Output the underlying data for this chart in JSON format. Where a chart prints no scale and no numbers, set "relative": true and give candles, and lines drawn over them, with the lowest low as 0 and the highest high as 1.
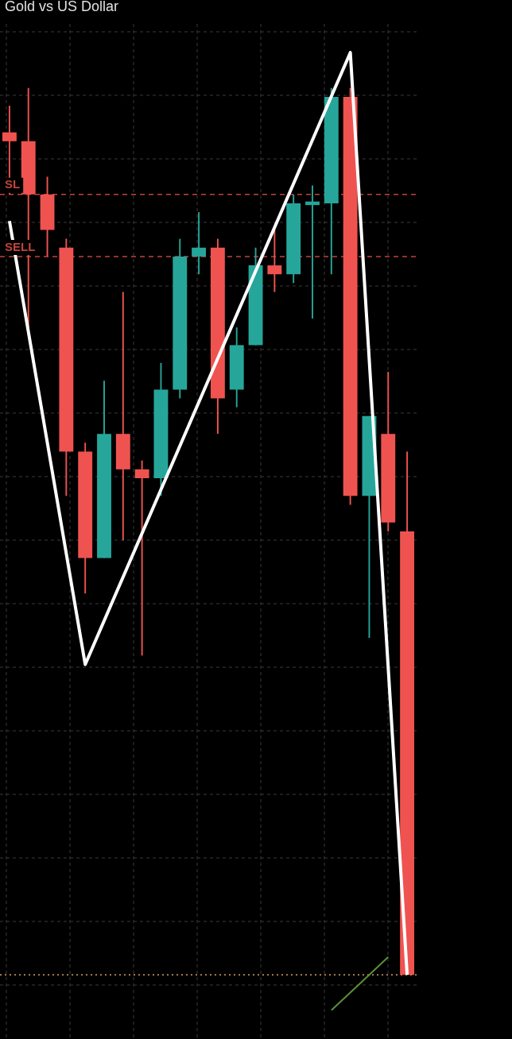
{
  "chart_data": {
    "type": "candlestick",
    "title": "Gold vs US Dollar",
    "relative": true,
    "grid": true,
    "legend": false,
    "categories": [
      null,
      null,
      null,
      null,
      null,
      null,
      null,
      null,
      null,
      null,
      null,
      null,
      null,
      null,
      null,
      null,
      null,
      null,
      null,
      null,
      null,
      null
    ],
    "ohlc": [
      [
        0.95,
        0.98,
        0.88,
        0.94
      ],
      [
        0.94,
        1.0,
        0.73,
        0.88
      ],
      [
        0.88,
        0.9,
        0.81,
        0.84
      ],
      [
        0.82,
        0.83,
        0.54,
        0.59
      ],
      [
        0.59,
        0.6,
        0.43,
        0.47
      ],
      [
        0.47,
        0.67,
        0.47,
        0.61
      ],
      [
        0.61,
        0.77,
        0.49,
        0.57
      ],
      [
        0.57,
        0.58,
        0.36,
        0.56
      ],
      [
        0.56,
        0.69,
        0.54,
        0.66
      ],
      [
        0.66,
        0.83,
        0.65,
        0.81
      ],
      [
        0.81,
        0.86,
        0.79,
        0.82
      ],
      [
        0.82,
        0.83,
        0.61,
        0.65
      ],
      [
        0.66,
        0.73,
        0.64,
        0.71
      ],
      [
        0.71,
        0.82,
        0.71,
        0.8
      ],
      [
        0.8,
        0.84,
        0.77,
        0.79
      ],
      [
        0.79,
        0.88,
        0.78,
        0.87
      ],
      [
        0.87,
        0.89,
        0.74,
        0.87
      ],
      [
        0.87,
        1.0,
        0.79,
        0.99
      ],
      [
        0.99,
        1.0,
        0.53,
        0.54
      ],
      [
        0.54,
        0.63,
        0.38,
        0.63
      ],
      [
        0.61,
        0.68,
        0.5,
        0.51
      ],
      [
        0.5,
        0.59,
        0.0,
        0.0
      ]
    ],
    "series": [
      {
        "type": "line",
        "color": "#ffffff",
        "values": [
          0.85,
          null,
          null,
          null,
          0.35,
          null,
          null,
          null,
          null,
          null,
          null,
          null,
          null,
          null,
          null,
          null,
          null,
          null,
          1.04,
          null,
          null,
          0.0
        ]
      },
      {
        "type": "line",
        "color": "#5a8f3a",
        "values": [
          null,
          null,
          null,
          null,
          null,
          null,
          null,
          null,
          null,
          null,
          null,
          null,
          null,
          null,
          null,
          null,
          null,
          -0.04,
          null,
          0.0,
          0.02,
          null
        ]
      }
    ],
    "ref_lines": [
      {
        "axis": "y",
        "value": 0.88,
        "label": "SL",
        "color": "#c0443c",
        "line_style": "dashed"
      },
      {
        "axis": "y",
        "value": 0.81,
        "label": "SELL",
        "color": "#c0443c",
        "line_style": "dashed"
      },
      {
        "axis": "y",
        "value": 0.0,
        "label": null,
        "color": "#d9a066",
        "line_style": "dotted"
      }
    ]
  }
}
